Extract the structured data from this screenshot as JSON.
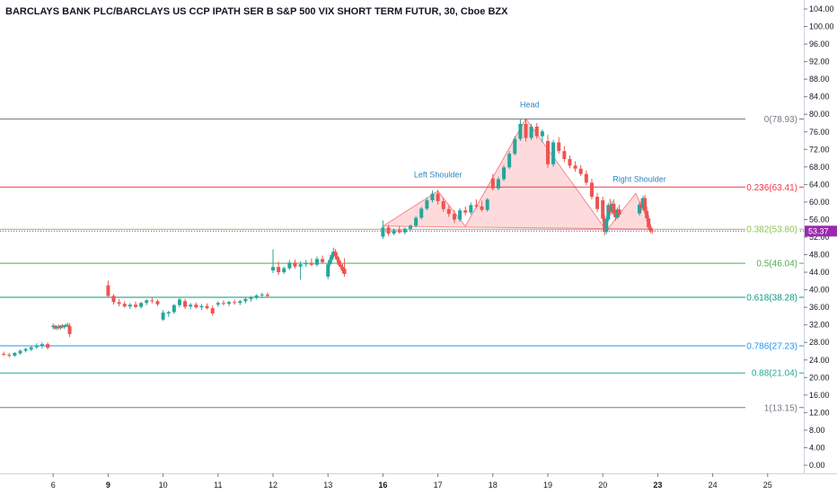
{
  "chart_data": {
    "type": "candlestick",
    "title": "BARCLAYS BANK PLC/BARCLAYS US CCP IPATH SER B S&P 500 VIX SHORT TERM FUTUR, 30, Cboe BZX",
    "ylim": [
      -2,
      106
    ],
    "y_ticks": [
      "0.00",
      "4.00",
      "8.00",
      "12.00",
      "16.00",
      "20.00",
      "24.00",
      "28.00",
      "32.00",
      "36.00",
      "40.00",
      "44.00",
      "48.00",
      "52.00",
      "56.00",
      "60.00",
      "64.00",
      "68.00",
      "72.00",
      "76.00",
      "80.00",
      "84.00",
      "88.00",
      "92.00",
      "96.00",
      "100.00",
      "104.00"
    ],
    "x_ticks": [
      {
        "label": "6",
        "day": 6,
        "bold": false
      },
      {
        "label": "9",
        "day": 9,
        "bold": true
      },
      {
        "label": "10",
        "day": 10,
        "bold": false
      },
      {
        "label": "11",
        "day": 11,
        "bold": false
      },
      {
        "label": "12",
        "day": 12,
        "bold": false
      },
      {
        "label": "13",
        "day": 13,
        "bold": false
      },
      {
        "label": "16",
        "day": 16,
        "bold": true
      },
      {
        "label": "17",
        "day": 17,
        "bold": false
      },
      {
        "label": "18",
        "day": 18,
        "bold": false
      },
      {
        "label": "19",
        "day": 19,
        "bold": false
      },
      {
        "label": "20",
        "day": 20,
        "bold": false
      },
      {
        "label": "23",
        "day": 23,
        "bold": true
      },
      {
        "label": "24",
        "day": 24,
        "bold": false
      },
      {
        "label": "25",
        "day": 25,
        "bold": false
      }
    ],
    "fib_levels": [
      {
        "label": "0(78.93)",
        "value": 78.93,
        "color": "#787b86"
      },
      {
        "label": "0.236(63.41)",
        "value": 63.41,
        "color": "#f23645"
      },
      {
        "label": "0.382(53.80)",
        "value": 53.8,
        "color": "#8bc34a"
      },
      {
        "label": "0.5(46.04)",
        "value": 46.04,
        "color": "#4caf50"
      },
      {
        "label": "0.618(38.28)",
        "value": 38.28,
        "color": "#089981"
      },
      {
        "label": "0.786(27.23)",
        "value": 27.23,
        "color": "#2196f3"
      },
      {
        "label": "0.88(21.04)",
        "value": 21.04,
        "color": "#26a69a"
      },
      {
        "label": "1(13.15)",
        "value": 13.15,
        "color": "#787b86"
      }
    ],
    "last_price": {
      "label": "53.37",
      "value": 53.37,
      "color": "#9c27b0"
    },
    "pattern_labels": [
      {
        "text": "Left Shoulder",
        "day": 17.0,
        "value": 65.6
      },
      {
        "text": "Head",
        "day": 18.67,
        "value": 81.6
      },
      {
        "text": "Right Shoulder",
        "day": 22.0,
        "value": 64.6
      }
    ],
    "pattern_points": [
      {
        "day": 16.0,
        "value": 54.5
      },
      {
        "day": 17.0,
        "value": 62.5
      },
      {
        "day": 17.5,
        "value": 54.5
      },
      {
        "day": 18.6,
        "value": 79.0
      },
      {
        "day": 20.2,
        "value": 53.5
      },
      {
        "day": 21.8,
        "value": 62.0
      },
      {
        "day": 22.7,
        "value": 53.8
      }
    ],
    "candles": [
      {
        "day": 5.0,
        "o": 25.6,
        "h": 26.2,
        "l": 25.1,
        "c": 25.4
      },
      {
        "day": 5.1,
        "o": 25.4,
        "h": 25.9,
        "l": 24.9,
        "c": 25.2
      },
      {
        "day": 5.2,
        "o": 25.2,
        "h": 25.6,
        "l": 24.6,
        "c": 25.0
      },
      {
        "day": 5.3,
        "o": 25.0,
        "h": 25.8,
        "l": 24.7,
        "c": 25.6
      },
      {
        "day": 5.4,
        "o": 25.5,
        "h": 26.4,
        "l": 25.2,
        "c": 26.1
      },
      {
        "day": 5.5,
        "o": 26.1,
        "h": 26.8,
        "l": 25.7,
        "c": 26.5
      },
      {
        "day": 5.6,
        "o": 26.4,
        "h": 27.2,
        "l": 26.0,
        "c": 26.9
      },
      {
        "day": 5.7,
        "o": 26.9,
        "h": 27.8,
        "l": 26.5,
        "c": 27.3
      },
      {
        "day": 5.8,
        "o": 27.3,
        "h": 28.0,
        "l": 26.6,
        "c": 27.6
      },
      {
        "day": 5.9,
        "o": 27.6,
        "h": 28.0,
        "l": 26.4,
        "c": 26.8
      },
      {
        "day": 6.0,
        "o": 31.5,
        "h": 32.3,
        "l": 31.0,
        "c": 31.8
      },
      {
        "day": 6.1,
        "o": 31.8,
        "h": 32.0,
        "l": 30.9,
        "c": 31.2
      },
      {
        "day": 6.2,
        "o": 31.2,
        "h": 31.9,
        "l": 30.8,
        "c": 31.6
      },
      {
        "day": 6.3,
        "o": 31.6,
        "h": 32.1,
        "l": 31.0,
        "c": 31.3
      },
      {
        "day": 6.4,
        "o": 31.3,
        "h": 32.0,
        "l": 30.9,
        "c": 31.8
      },
      {
        "day": 6.5,
        "o": 31.8,
        "h": 32.2,
        "l": 31.2,
        "c": 31.5
      },
      {
        "day": 6.6,
        "o": 31.5,
        "h": 32.0,
        "l": 31.1,
        "c": 31.9
      },
      {
        "day": 6.7,
        "o": 31.9,
        "h": 32.3,
        "l": 31.4,
        "c": 32.0
      },
      {
        "day": 6.8,
        "o": 32.0,
        "h": 32.5,
        "l": 31.5,
        "c": 31.7
      },
      {
        "day": 6.9,
        "o": 31.7,
        "h": 32.4,
        "l": 29.2,
        "c": 29.9
      },
      {
        "day": 9.0,
        "o": 41.0,
        "h": 42.1,
        "l": 38.2,
        "c": 38.6
      },
      {
        "day": 9.1,
        "o": 38.6,
        "h": 39.0,
        "l": 36.6,
        "c": 37.2
      },
      {
        "day": 9.2,
        "o": 37.2,
        "h": 37.9,
        "l": 36.2,
        "c": 36.8
      },
      {
        "day": 9.3,
        "o": 36.8,
        "h": 37.4,
        "l": 35.9,
        "c": 36.2
      },
      {
        "day": 9.4,
        "o": 36.2,
        "h": 37.0,
        "l": 35.6,
        "c": 36.6
      },
      {
        "day": 9.5,
        "o": 36.6,
        "h": 37.3,
        "l": 35.8,
        "c": 36.1
      },
      {
        "day": 9.6,
        "o": 36.1,
        "h": 37.2,
        "l": 35.7,
        "c": 37.0
      },
      {
        "day": 9.7,
        "o": 37.0,
        "h": 37.9,
        "l": 36.5,
        "c": 37.6
      },
      {
        "day": 9.8,
        "o": 37.6,
        "h": 38.2,
        "l": 36.9,
        "c": 37.4
      },
      {
        "day": 9.9,
        "o": 37.4,
        "h": 37.8,
        "l": 36.3,
        "c": 36.7
      },
      {
        "day": 10.0,
        "o": 33.2,
        "h": 35.4,
        "l": 32.9,
        "c": 34.8
      },
      {
        "day": 10.1,
        "o": 34.6,
        "h": 35.2,
        "l": 33.8,
        "c": 34.9
      },
      {
        "day": 10.2,
        "o": 34.9,
        "h": 36.8,
        "l": 34.5,
        "c": 36.5
      },
      {
        "day": 10.3,
        "o": 36.5,
        "h": 38.1,
        "l": 36.0,
        "c": 37.8
      },
      {
        "day": 10.4,
        "o": 37.4,
        "h": 37.9,
        "l": 35.6,
        "c": 36.1
      },
      {
        "day": 10.5,
        "o": 36.2,
        "h": 37.0,
        "l": 35.5,
        "c": 36.6
      },
      {
        "day": 10.6,
        "o": 36.6,
        "h": 37.1,
        "l": 35.7,
        "c": 36.0
      },
      {
        "day": 10.7,
        "o": 36.0,
        "h": 36.8,
        "l": 35.4,
        "c": 36.3
      },
      {
        "day": 10.8,
        "o": 36.3,
        "h": 36.9,
        "l": 35.5,
        "c": 35.8
      },
      {
        "day": 10.9,
        "o": 35.8,
        "h": 36.4,
        "l": 34.1,
        "c": 34.6
      },
      {
        "day": 11.0,
        "o": 36.6,
        "h": 37.4,
        "l": 36.1,
        "c": 37.0
      },
      {
        "day": 11.1,
        "o": 37.0,
        "h": 37.6,
        "l": 36.4,
        "c": 36.8
      },
      {
        "day": 11.2,
        "o": 36.8,
        "h": 37.5,
        "l": 36.3,
        "c": 37.2
      },
      {
        "day": 11.3,
        "o": 37.2,
        "h": 37.8,
        "l": 36.6,
        "c": 37.0
      },
      {
        "day": 11.4,
        "o": 37.0,
        "h": 37.7,
        "l": 36.5,
        "c": 37.4
      },
      {
        "day": 11.5,
        "o": 37.4,
        "h": 38.2,
        "l": 36.9,
        "c": 37.9
      },
      {
        "day": 11.6,
        "o": 37.9,
        "h": 38.6,
        "l": 37.3,
        "c": 38.4
      },
      {
        "day": 11.7,
        "o": 38.4,
        "h": 39.0,
        "l": 37.8,
        "c": 38.7
      },
      {
        "day": 11.8,
        "o": 38.7,
        "h": 39.3,
        "l": 38.1,
        "c": 38.9
      },
      {
        "day": 11.9,
        "o": 38.9,
        "h": 39.4,
        "l": 38.3,
        "c": 38.6
      },
      {
        "day": 12.0,
        "o": 44.4,
        "h": 49.2,
        "l": 43.8,
        "c": 45.2
      },
      {
        "day": 12.1,
        "o": 45.2,
        "h": 46.4,
        "l": 43.4,
        "c": 44.0
      },
      {
        "day": 12.2,
        "o": 44.0,
        "h": 45.3,
        "l": 43.6,
        "c": 44.9
      },
      {
        "day": 12.3,
        "o": 44.9,
        "h": 46.8,
        "l": 44.5,
        "c": 46.2
      },
      {
        "day": 12.4,
        "o": 46.2,
        "h": 46.9,
        "l": 44.8,
        "c": 45.3
      },
      {
        "day": 12.5,
        "o": 45.3,
        "h": 46.5,
        "l": 42.3,
        "c": 45.8
      },
      {
        "day": 12.6,
        "o": 45.8,
        "h": 46.8,
        "l": 45.2,
        "c": 46.1
      },
      {
        "day": 12.7,
        "o": 46.1,
        "h": 47.1,
        "l": 45.4,
        "c": 45.7
      },
      {
        "day": 12.8,
        "o": 45.7,
        "h": 47.6,
        "l": 45.3,
        "c": 47.0
      },
      {
        "day": 12.9,
        "o": 47.0,
        "h": 47.8,
        "l": 45.9,
        "c": 46.3
      },
      {
        "day": 13.0,
        "o": 43.0,
        "h": 46.2,
        "l": 42.4,
        "c": 45.8
      },
      {
        "day": 13.1,
        "o": 45.8,
        "h": 47.3,
        "l": 45.3,
        "c": 46.8
      },
      {
        "day": 13.2,
        "o": 46.8,
        "h": 48.3,
        "l": 46.2,
        "c": 47.9
      },
      {
        "day": 13.3,
        "o": 47.9,
        "h": 49.6,
        "l": 47.3,
        "c": 48.7
      },
      {
        "day": 13.4,
        "o": 48.7,
        "h": 49.3,
        "l": 47.1,
        "c": 47.6
      },
      {
        "day": 13.5,
        "o": 47.6,
        "h": 48.4,
        "l": 46.3,
        "c": 46.8
      },
      {
        "day": 13.6,
        "o": 46.8,
        "h": 47.4,
        "l": 45.3,
        "c": 45.7
      },
      {
        "day": 13.7,
        "o": 45.7,
        "h": 46.4,
        "l": 44.8,
        "c": 45.2
      },
      {
        "day": 13.8,
        "o": 45.2,
        "h": 45.9,
        "l": 43.8,
        "c": 44.3
      },
      {
        "day": 13.9,
        "o": 44.8,
        "h": 47.2,
        "l": 43.0,
        "c": 43.6
      },
      {
        "day": 16.0,
        "o": 52.1,
        "h": 55.8,
        "l": 51.6,
        "c": 54.2
      },
      {
        "day": 16.1,
        "o": 54.2,
        "h": 54.8,
        "l": 52.3,
        "c": 52.8
      },
      {
        "day": 16.2,
        "o": 52.8,
        "h": 54.0,
        "l": 52.4,
        "c": 53.6
      },
      {
        "day": 16.3,
        "o": 53.6,
        "h": 54.5,
        "l": 52.8,
        "c": 53.1
      },
      {
        "day": 16.4,
        "o": 53.1,
        "h": 54.2,
        "l": 52.6,
        "c": 53.9
      },
      {
        "day": 16.5,
        "o": 53.9,
        "h": 54.9,
        "l": 53.4,
        "c": 54.6
      },
      {
        "day": 16.6,
        "o": 54.6,
        "h": 56.8,
        "l": 54.2,
        "c": 56.4
      },
      {
        "day": 16.7,
        "o": 56.4,
        "h": 58.9,
        "l": 56.0,
        "c": 58.5
      },
      {
        "day": 16.8,
        "o": 58.5,
        "h": 61.0,
        "l": 58.1,
        "c": 60.4
      },
      {
        "day": 16.9,
        "o": 60.4,
        "h": 62.6,
        "l": 59.9,
        "c": 61.9
      },
      {
        "day": 17.0,
        "o": 61.9,
        "h": 62.8,
        "l": 59.4,
        "c": 60.2
      },
      {
        "day": 17.1,
        "o": 60.2,
        "h": 60.9,
        "l": 57.8,
        "c": 58.4
      },
      {
        "day": 17.2,
        "o": 58.4,
        "h": 59.2,
        "l": 56.6,
        "c": 57.3
      },
      {
        "day": 17.3,
        "o": 57.3,
        "h": 58.1,
        "l": 55.2,
        "c": 56.0
      },
      {
        "day": 17.4,
        "o": 56.0,
        "h": 58.6,
        "l": 55.5,
        "c": 58.1
      },
      {
        "day": 17.5,
        "o": 58.1,
        "h": 59.0,
        "l": 57.0,
        "c": 57.6
      },
      {
        "day": 17.6,
        "o": 57.6,
        "h": 59.9,
        "l": 57.1,
        "c": 59.3
      },
      {
        "day": 17.7,
        "o": 59.3,
        "h": 60.6,
        "l": 58.6,
        "c": 59.0
      },
      {
        "day": 17.8,
        "o": 59.0,
        "h": 60.3,
        "l": 57.8,
        "c": 58.2
      },
      {
        "day": 17.9,
        "o": 58.2,
        "h": 60.9,
        "l": 57.8,
        "c": 60.6
      },
      {
        "day": 18.0,
        "o": 65.4,
        "h": 66.4,
        "l": 62.6,
        "c": 63.1
      },
      {
        "day": 18.1,
        "o": 63.1,
        "h": 65.8,
        "l": 62.7,
        "c": 65.2
      },
      {
        "day": 18.2,
        "o": 65.2,
        "h": 68.4,
        "l": 64.8,
        "c": 67.9
      },
      {
        "day": 18.3,
        "o": 67.9,
        "h": 71.6,
        "l": 67.5,
        "c": 71.0
      },
      {
        "day": 18.4,
        "o": 71.0,
        "h": 75.0,
        "l": 70.6,
        "c": 74.4
      },
      {
        "day": 18.5,
        "o": 74.4,
        "h": 79.0,
        "l": 73.9,
        "c": 77.8
      },
      {
        "day": 18.6,
        "o": 77.8,
        "h": 78.9,
        "l": 73.8,
        "c": 74.6
      },
      {
        "day": 18.7,
        "o": 74.6,
        "h": 77.8,
        "l": 74.1,
        "c": 77.2
      },
      {
        "day": 18.8,
        "o": 77.2,
        "h": 78.0,
        "l": 74.4,
        "c": 75.0
      },
      {
        "day": 18.9,
        "o": 75.0,
        "h": 76.6,
        "l": 73.6,
        "c": 76.1
      },
      {
        "day": 19.0,
        "o": 73.9,
        "h": 75.3,
        "l": 67.8,
        "c": 68.6
      },
      {
        "day": 19.1,
        "o": 68.6,
        "h": 74.2,
        "l": 68.0,
        "c": 73.6
      },
      {
        "day": 19.2,
        "o": 73.6,
        "h": 74.8,
        "l": 71.0,
        "c": 71.6
      },
      {
        "day": 19.3,
        "o": 71.6,
        "h": 72.7,
        "l": 69.1,
        "c": 69.8
      },
      {
        "day": 19.4,
        "o": 69.8,
        "h": 70.6,
        "l": 67.7,
        "c": 68.3
      },
      {
        "day": 19.5,
        "o": 68.3,
        "h": 69.3,
        "l": 66.9,
        "c": 67.6
      },
      {
        "day": 19.6,
        "o": 67.6,
        "h": 68.4,
        "l": 65.9,
        "c": 66.4
      },
      {
        "day": 19.7,
        "o": 66.4,
        "h": 67.2,
        "l": 63.8,
        "c": 64.4
      },
      {
        "day": 19.8,
        "o": 64.4,
        "h": 65.3,
        "l": 60.6,
        "c": 61.2
      },
      {
        "day": 19.9,
        "o": 61.2,
        "h": 62.1,
        "l": 57.7,
        "c": 58.4
      },
      {
        "day": 20.0,
        "o": 60.4,
        "h": 61.2,
        "l": 55.4,
        "c": 56.2
      },
      {
        "day": 20.1,
        "o": 56.2,
        "h": 57.0,
        "l": 52.4,
        "c": 53.2
      },
      {
        "day": 20.2,
        "o": 53.2,
        "h": 56.6,
        "l": 52.7,
        "c": 56.0
      },
      {
        "day": 20.3,
        "o": 56.0,
        "h": 59.8,
        "l": 55.6,
        "c": 59.3
      },
      {
        "day": 20.4,
        "o": 59.3,
        "h": 60.7,
        "l": 57.0,
        "c": 57.7
      },
      {
        "day": 20.5,
        "o": 57.7,
        "h": 60.2,
        "l": 57.2,
        "c": 59.6
      },
      {
        "day": 20.6,
        "o": 59.6,
        "h": 60.6,
        "l": 56.8,
        "c": 57.4
      },
      {
        "day": 20.7,
        "o": 57.4,
        "h": 58.2,
        "l": 55.8,
        "c": 56.5
      },
      {
        "day": 20.8,
        "o": 56.5,
        "h": 58.8,
        "l": 56.1,
        "c": 58.3
      },
      {
        "day": 20.9,
        "o": 58.3,
        "h": 59.4,
        "l": 56.6,
        "c": 57.1
      },
      {
        "day": 22.0,
        "o": 57.4,
        "h": 60.0,
        "l": 56.9,
        "c": 59.4
      },
      {
        "day": 22.1,
        "o": 59.4,
        "h": 60.8,
        "l": 58.0,
        "c": 58.6
      },
      {
        "day": 22.2,
        "o": 58.6,
        "h": 61.4,
        "l": 58.2,
        "c": 60.9
      },
      {
        "day": 22.3,
        "o": 60.9,
        "h": 61.6,
        "l": 57.4,
        "c": 58.0
      },
      {
        "day": 22.4,
        "o": 58.0,
        "h": 59.0,
        "l": 55.6,
        "c": 56.3
      },
      {
        "day": 22.5,
        "o": 56.3,
        "h": 57.0,
        "l": 53.6,
        "c": 54.2
      },
      {
        "day": 22.6,
        "o": 54.2,
        "h": 55.0,
        "l": 52.9,
        "c": 53.5
      },
      {
        "day": 22.7,
        "o": 53.5,
        "h": 54.0,
        "l": 52.8,
        "c": 53.37
      }
    ]
  }
}
